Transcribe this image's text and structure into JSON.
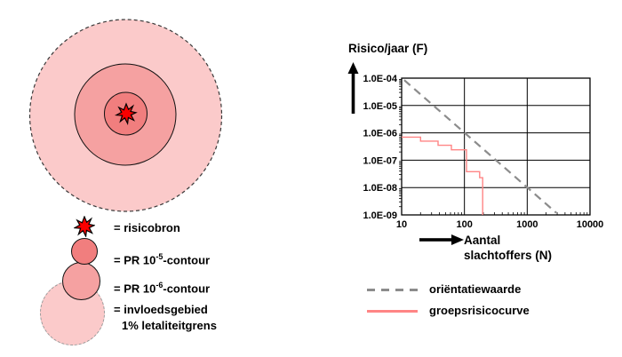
{
  "colors": {
    "zone_outer": "#fbcaca",
    "zone_middle": "#f5a1a1",
    "zone_inner": "#f17e7e",
    "star_red": "#fb0000",
    "curve_red": "#ff8585",
    "orientation_gray": "#8c8c8c"
  },
  "contour_legend": {
    "risicobron_label": "= risicobron",
    "pr5_pre": "= PR 10",
    "pr5_sup": "-5",
    "pr5_post": "-contour",
    "pr6_pre": "= PR 10",
    "pr6_sup": "-6",
    "pr6_post": "-contour",
    "invloed_line1": "= invloedsgebied",
    "invloed_line2": "1% letaliteitgrens"
  },
  "chart": {
    "y_axis_title": "Risico/jaar (F)",
    "x_axis_title_line1": "Aantal",
    "x_axis_title_line2": "slachtoffers (N)"
  },
  "chart_legend": {
    "orientation_label": "oriëntatiewaarde",
    "grouprisk_label": "groepsrisicocurve"
  },
  "chart_data": {
    "type": "line",
    "x_axis": {
      "label": "Aantal slachtoffers (N)",
      "scale": "log",
      "min": 10,
      "max": 10000,
      "ticks": [
        10,
        100,
        1000,
        10000
      ],
      "tick_labels": [
        "10",
        "100",
        "1000",
        "10000"
      ]
    },
    "y_axis": {
      "label": "Risico/jaar (F)",
      "scale": "log",
      "min": 1e-09,
      "max": 0.0001,
      "ticks": [
        0.0001,
        1e-05,
        1e-06,
        1e-07,
        1e-08,
        1e-09
      ],
      "tick_labels": [
        "1.0E-04",
        "1.0E-05",
        "1.0E-06",
        "1.0E-07",
        "1.0E-08",
        "1.0E-09"
      ]
    },
    "grid": true,
    "legend_position": "below",
    "series": [
      {
        "name": "oriëntatiewaarde",
        "style": "dashed",
        "color": "#8c8c8c",
        "points": [
          [
            11,
            8.5e-05
          ],
          [
            2900,
            1.2e-09
          ]
        ]
      },
      {
        "name": "groepsrisicocurve",
        "style": "solid",
        "color": "#ff8585",
        "points": [
          [
            10,
            7e-07
          ],
          [
            20,
            7e-07
          ],
          [
            20,
            5e-07
          ],
          [
            38,
            5e-07
          ],
          [
            38,
            3.5e-07
          ],
          [
            62,
            3.5e-07
          ],
          [
            62,
            2.4e-07
          ],
          [
            108,
            2.4e-07
          ],
          [
            108,
            3.8e-08
          ],
          [
            175,
            3.8e-08
          ],
          [
            175,
            2.3e-08
          ],
          [
            195,
            2.3e-08
          ],
          [
            195,
            1e-09
          ]
        ]
      }
    ]
  }
}
